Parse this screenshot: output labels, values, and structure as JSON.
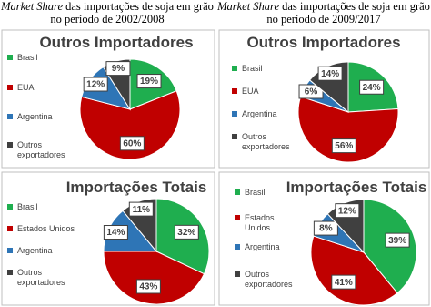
{
  "headers": [
    {
      "emphasis": "Market Share",
      "text": "das importações de soja em grão no período de 2002/2008"
    },
    {
      "emphasis": "Market Share",
      "text": "das importações de soja em grão no período de 2009/2017"
    }
  ],
  "chart_data": [
    {
      "type": "pie",
      "title": "Outros Importadores",
      "categories": [
        "Brasil",
        "EUA",
        "Argentina",
        "Outros exportadores"
      ],
      "values": [
        19,
        60,
        12,
        9
      ],
      "value_labels": [
        "19%",
        "60%",
        "12%",
        "9%"
      ],
      "colors": [
        "#1fae4f",
        "#c00000",
        "#2e75b6",
        "#404040"
      ]
    },
    {
      "type": "pie",
      "title": "Outros Importadores",
      "categories": [
        "Brasil",
        "EUA",
        "Argentina",
        "Outros exportadores"
      ],
      "values": [
        24,
        56,
        6,
        14
      ],
      "value_labels": [
        "24%",
        "56%",
        "6%",
        "14%"
      ],
      "colors": [
        "#1fae4f",
        "#c00000",
        "#2e75b6",
        "#404040"
      ]
    },
    {
      "type": "pie",
      "title": "Importações Totais",
      "categories": [
        "Brasil",
        "Estados Unidos",
        "Argentina",
        "Outros exportadores"
      ],
      "values": [
        32,
        43,
        14,
        11
      ],
      "value_labels": [
        "32%",
        "43%",
        "14%",
        "11%"
      ],
      "colors": [
        "#1fae4f",
        "#c00000",
        "#2e75b6",
        "#404040"
      ]
    },
    {
      "type": "pie",
      "title": "Importações Totais",
      "categories": [
        "Brasil",
        "Estados Unidos",
        "Argentina",
        "Outros exportadores"
      ],
      "values": [
        39,
        41,
        8,
        12
      ],
      "value_labels": [
        "39%",
        "41%",
        "8%",
        "12%"
      ],
      "colors": [
        "#1fae4f",
        "#c00000",
        "#2e75b6",
        "#404040"
      ]
    }
  ]
}
